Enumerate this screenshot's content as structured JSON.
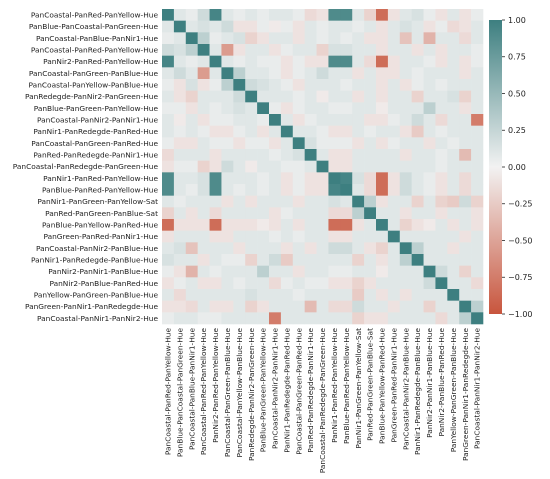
{
  "chart_data": {
    "type": "heatmap",
    "title": "",
    "xlabel": "",
    "ylabel": "",
    "labels": [
      "PanCoastal-PanRed-PanYellow-Hue",
      "PanBlue-PanCoastal-PanGreen-Hue",
      "PanCoastal-PanBlue-PanNir1-Hue",
      "PanCoastal-PanRed-PanYellow-Hue",
      "PanNir2-PanRed-PanYellow-Hue",
      "PanCoastal-PanGreen-PanBlue-Hue",
      "PanCoastal-PanYellow-PanBlue-Hue",
      "PanRedegde-PanNir2-PanGreen-Hue",
      "PanBlue-PanGreen-PanYellow-Hue",
      "PanCoastal-PanNir2-PanNir1-Hue",
      "PanNir1-PanRedegde-PanRed-Hue",
      "PanCoastal-PanGreen-PanRed-Hue",
      "PanRed-PanRedegde-PanNir1-Hue",
      "PanCoastal-PanRedegde-PanGreen-Hue",
      "PanNir1-PanRed-PanYellow-Hue",
      "PanBlue-PanRed-PanYellow-Hue",
      "PanNir1-PanGreen-PanYellow-Sat",
      "PanRed-PanGreen-PanBlue-Sat",
      "PanBlue-PanYellow-PanRed-Hue",
      "PanGreen-PanRed-PanNir1-Hue",
      "PanCoastal-PanNir2-PanBlue-Hue",
      "PanNir1-PanRedegde-PanBlue-Hue",
      "PanNir2-PanNir1-PanBlue-Hue",
      "PanNir2-PanBlue-PanRed-Hue",
      "PanYellow-PanGreen-PanBlue-Hue",
      "PanGreen-PanNir1-PanRedegde-Hue",
      "PanCoastal-PanNir1-PanNir2-Hue"
    ],
    "xticklabels": [
      "PanCoastal-PanRed-PanYellow-Hue",
      "PanBlue-PanCoastal-PanGreen-Hue",
      "PanCoastal-PanBlue-PanNir1-Hue",
      "PanCoastal-PanRed-PanYellow-Hue",
      "PanNir2-PanRed-PanYellow-Hue",
      "PanCoastal-PanGreen-PanBlue-Hue",
      "PanCoastal-PanYellow-PanBlue-Hue",
      "PanRedegde-PanNir2-PanGreen-Hue",
      "PanBlue-PanGreen-PanYellow-Hue",
      "PanCoastal-PanNir2-PanNir1-Hue",
      "PanNir1-PanRedegde-PanRed-Hue",
      "PanCoastal-PanGreen-PanRed-Hue",
      "PanRed-PanRedegde-PanNir1-Hue",
      "PanCoastal-PanRedegde-PanGreen-Hue",
      "PanNir1-PanRed-PanYellow-Hue",
      "PanBlue-PanRed-PanYellow-Hue",
      "PanNir1-PanGreen-PanYellow-Sat",
      "PanRed-PanGreen-PanBlue-Sat",
      "PanBlue-PanYellow-PanRed-Hue",
      "PanGreen-PanRed-PanNir1-Hue",
      "PanCoastal-PanNir2-PanBlue-Hue",
      "PanNir1-PanRedegde-PanBlue-Hue",
      "PanNir2-PanNir1-PanBlue-Hue",
      "PanNir2-PanBlue-PanRed-Hue",
      "PanYellow-PanGreen-PanBlue-Hue",
      "PanGreen-PanNir1-PanRedegde-Hue",
      "PanCoastal-PanNir1-PanNir2-Hue"
    ],
    "values": [
      [
        1.0,
        0.1,
        0.05,
        0.2,
        0.95,
        0.1,
        0.05,
        0.1,
        0.05,
        0.1,
        0.1,
        0.05,
        -0.15,
        -0.1,
        0.9,
        0.9,
        0.1,
        -0.2,
        -0.85,
        -0.1,
        0.1,
        0.15,
        0.05,
        -0.1,
        0.1,
        -0.1,
        0.05
      ],
      [
        0.1,
        1.0,
        0.1,
        0.15,
        0.1,
        0.2,
        -0.1,
        -0.1,
        0.05,
        -0.05,
        0.05,
        -0.1,
        0.1,
        0.05,
        0.1,
        0.1,
        0.05,
        0.1,
        -0.1,
        0.1,
        0.15,
        0.1,
        -0.1,
        0.05,
        -0.15,
        -0.1,
        0.1
      ],
      [
        0.05,
        0.1,
        1.0,
        0.3,
        0.05,
        0.1,
        0.15,
        -0.2,
        -0.1,
        0.1,
        0.1,
        -0.1,
        0.1,
        0.05,
        0.1,
        0.05,
        0.1,
        -0.1,
        -0.1,
        0.1,
        -0.3,
        0.1,
        -0.4,
        0.1,
        0.1,
        -0.15,
        0.1
      ],
      [
        0.2,
        0.15,
        0.3,
        1.0,
        0.1,
        -0.55,
        -0.1,
        0.1,
        0.1,
        -0.1,
        0.05,
        0.1,
        0.1,
        -0.2,
        0.15,
        0.15,
        0.1,
        0.1,
        -0.1,
        0.1,
        0.1,
        -0.1,
        0.1,
        -0.1,
        0.1,
        0.1,
        0.05
      ],
      [
        0.95,
        0.1,
        0.05,
        0.1,
        1.0,
        0.1,
        0.05,
        0.1,
        0.05,
        0.05,
        -0.1,
        0.05,
        -0.1,
        -0.1,
        0.9,
        0.9,
        0.1,
        -0.15,
        -0.85,
        -0.1,
        0.1,
        0.1,
        0.05,
        -0.1,
        0.1,
        -0.1,
        0.05
      ],
      [
        0.1,
        0.2,
        0.1,
        -0.55,
        0.1,
        1.0,
        0.3,
        0.1,
        0.1,
        0.05,
        -0.1,
        0.05,
        0.1,
        0.2,
        0.1,
        0.1,
        -0.1,
        0.1,
        -0.1,
        -0.1,
        0.1,
        0.05,
        0.1,
        0.1,
        0.1,
        -0.1,
        0.1
      ],
      [
        0.05,
        -0.1,
        0.15,
        -0.1,
        0.05,
        0.3,
        1.0,
        0.2,
        0.15,
        0.1,
        0.05,
        -0.1,
        0.1,
        0.1,
        0.1,
        0.05,
        0.1,
        0.1,
        -0.1,
        0.1,
        -0.1,
        0.05,
        0.1,
        0.05,
        0.1,
        0.1,
        0.1
      ],
      [
        0.1,
        -0.1,
        -0.2,
        0.1,
        0.1,
        0.1,
        0.2,
        1.0,
        0.1,
        0.1,
        0.1,
        0.05,
        0.1,
        -0.05,
        0.1,
        0.1,
        -0.1,
        0.1,
        -0.1,
        0.1,
        0.1,
        -0.2,
        0.1,
        0.1,
        0.15,
        -0.2,
        0.1
      ],
      [
        0.05,
        0.05,
        -0.1,
        0.1,
        0.05,
        0.1,
        0.15,
        0.1,
        1.0,
        0.05,
        -0.1,
        0.05,
        0.1,
        0.1,
        0.05,
        0.05,
        0.1,
        0.1,
        -0.05,
        0.1,
        0.1,
        0.1,
        0.3,
        0.1,
        0.1,
        -0.1,
        0.1
      ],
      [
        0.1,
        -0.05,
        0.1,
        -0.1,
        0.05,
        0.05,
        0.1,
        0.1,
        0.05,
        1.0,
        0.1,
        -0.1,
        0.05,
        0.1,
        0.1,
        0.1,
        0.1,
        -0.1,
        -0.1,
        0.05,
        0.1,
        0.2,
        0.1,
        -0.15,
        0.1,
        0.1,
        -0.75
      ],
      [
        0.1,
        0.05,
        0.1,
        0.05,
        -0.1,
        -0.1,
        0.05,
        0.1,
        -0.1,
        0.1,
        1.0,
        0.1,
        0.1,
        0.05,
        -0.1,
        -0.1,
        0.1,
        0.05,
        0.1,
        0.1,
        -0.1,
        -0.25,
        0.1,
        0.05,
        0.1,
        0.1,
        0.1
      ],
      [
        0.05,
        -0.1,
        -0.1,
        0.1,
        0.05,
        0.05,
        -0.1,
        0.05,
        0.05,
        -0.1,
        0.1,
        1.0,
        0.15,
        0.05,
        0.05,
        0.05,
        -0.1,
        0.1,
        -0.1,
        0.05,
        0.1,
        0.1,
        -0.1,
        0.1,
        0.05,
        0.1,
        0.1
      ],
      [
        -0.15,
        0.1,
        0.1,
        0.1,
        -0.1,
        0.1,
        0.1,
        0.1,
        0.1,
        0.05,
        0.1,
        0.15,
        1.0,
        0.1,
        -0.1,
        -0.1,
        0.1,
        0.1,
        0.1,
        0.1,
        -0.1,
        0.1,
        0.1,
        0.05,
        0.1,
        -0.35,
        0.1
      ],
      [
        -0.1,
        0.05,
        0.05,
        -0.2,
        -0.1,
        0.2,
        0.1,
        -0.05,
        0.1,
        0.1,
        0.05,
        0.05,
        0.1,
        1.0,
        -0.1,
        -0.1,
        0.1,
        0.1,
        0.1,
        0.1,
        0.1,
        0.1,
        0.1,
        0.05,
        0.1,
        0.1,
        0.1
      ],
      [
        0.9,
        0.1,
        0.1,
        0.15,
        0.9,
        0.1,
        0.1,
        0.1,
        0.05,
        0.1,
        -0.1,
        0.05,
        -0.1,
        -0.1,
        1.0,
        0.95,
        0.15,
        -0.15,
        -0.85,
        -0.1,
        0.2,
        0.1,
        0.05,
        -0.1,
        0.1,
        -0.15,
        0.1
      ],
      [
        0.9,
        0.1,
        0.05,
        0.15,
        0.9,
        0.1,
        0.05,
        0.1,
        0.05,
        0.1,
        -0.1,
        0.05,
        -0.1,
        -0.1,
        0.95,
        1.0,
        0.1,
        -0.15,
        -0.85,
        -0.1,
        0.2,
        0.1,
        0.05,
        -0.1,
        0.1,
        -0.15,
        0.1
      ],
      [
        0.1,
        0.05,
        0.1,
        0.1,
        0.1,
        -0.1,
        0.1,
        -0.1,
        0.1,
        0.1,
        0.1,
        -0.1,
        0.1,
        0.1,
        0.15,
        0.1,
        1.0,
        0.3,
        -0.1,
        0.1,
        0.1,
        -0.2,
        0.1,
        -0.2,
        -0.25,
        0.2,
        -0.2
      ],
      [
        -0.2,
        0.1,
        -0.1,
        0.1,
        -0.15,
        0.1,
        0.1,
        0.1,
        0.1,
        -0.1,
        0.05,
        0.1,
        0.1,
        0.1,
        -0.15,
        -0.15,
        0.3,
        1.0,
        0.1,
        0.1,
        -0.1,
        0.1,
        0.1,
        -0.1,
        0.1,
        0.1,
        -0.1
      ],
      [
        -0.85,
        -0.1,
        -0.1,
        -0.1,
        -0.85,
        -0.1,
        -0.1,
        -0.1,
        -0.05,
        -0.1,
        0.1,
        -0.1,
        0.1,
        0.1,
        -0.85,
        -0.85,
        -0.1,
        0.1,
        1.0,
        0.1,
        -0.2,
        -0.1,
        -0.05,
        0.1,
        -0.1,
        0.1,
        -0.1
      ],
      [
        -0.1,
        0.1,
        0.1,
        0.1,
        -0.1,
        -0.1,
        0.1,
        0.1,
        0.1,
        0.05,
        0.1,
        0.05,
        0.1,
        0.1,
        -0.1,
        -0.1,
        0.1,
        0.1,
        0.1,
        1.0,
        0.1,
        0.1,
        0.1,
        0.1,
        0.1,
        -0.1,
        0.1
      ],
      [
        0.1,
        0.15,
        -0.3,
        0.1,
        0.1,
        0.1,
        -0.1,
        0.1,
        0.1,
        0.1,
        -0.1,
        0.1,
        -0.1,
        0.1,
        0.2,
        0.2,
        0.1,
        -0.1,
        -0.2,
        0.1,
        1.0,
        0.3,
        0.1,
        0.1,
        -0.1,
        0.1,
        0.1
      ],
      [
        0.15,
        0.1,
        0.1,
        -0.1,
        0.1,
        0.05,
        0.05,
        -0.2,
        0.1,
        0.2,
        -0.25,
        0.1,
        0.1,
        0.1,
        0.1,
        0.1,
        -0.2,
        0.1,
        -0.1,
        0.1,
        0.3,
        1.0,
        0.1,
        0.1,
        0.1,
        0.1,
        0.1
      ],
      [
        0.05,
        -0.1,
        -0.4,
        0.1,
        0.05,
        0.1,
        0.1,
        0.1,
        0.3,
        0.1,
        0.1,
        -0.1,
        0.1,
        0.1,
        0.05,
        0.05,
        0.1,
        0.1,
        -0.05,
        0.1,
        0.1,
        0.1,
        1.0,
        0.2,
        0.1,
        -0.2,
        0.1
      ],
      [
        -0.1,
        0.05,
        0.1,
        -0.1,
        -0.1,
        0.1,
        0.05,
        0.1,
        0.1,
        -0.15,
        0.05,
        0.1,
        0.05,
        0.05,
        -0.1,
        -0.1,
        -0.2,
        -0.1,
        0.1,
        0.1,
        0.1,
        0.1,
        0.2,
        1.0,
        0.1,
        0.1,
        -0.15
      ],
      [
        0.1,
        -0.15,
        0.1,
        0.1,
        0.1,
        0.1,
        0.1,
        0.15,
        0.1,
        0.1,
        0.1,
        0.05,
        0.1,
        0.1,
        0.1,
        0.1,
        -0.25,
        0.1,
        -0.1,
        0.1,
        -0.1,
        0.1,
        0.1,
        0.1,
        1.0,
        0.1,
        0.1
      ],
      [
        -0.1,
        -0.1,
        -0.15,
        0.1,
        -0.1,
        -0.1,
        0.1,
        -0.2,
        -0.1,
        0.1,
        0.1,
        0.1,
        -0.35,
        0.1,
        -0.15,
        -0.15,
        0.2,
        0.1,
        0.1,
        -0.1,
        0.1,
        0.1,
        -0.2,
        0.1,
        0.1,
        1.0,
        0.3
      ],
      [
        0.05,
        0.1,
        0.1,
        0.05,
        0.05,
        0.1,
        0.1,
        0.1,
        0.1,
        -0.75,
        0.1,
        0.1,
        0.1,
        0.1,
        0.1,
        0.1,
        -0.2,
        -0.1,
        -0.1,
        0.1,
        0.1,
        0.1,
        0.1,
        -0.15,
        0.1,
        0.3,
        1.0
      ]
    ],
    "vmin": -1.0,
    "vmax": 1.0,
    "colorscale": {
      "negative": "#c8553d",
      "center": "#f2f2f2",
      "positive": "#3d7f80"
    },
    "colorbar_ticks": [
      {
        "value": 1.0,
        "label": "1.00"
      },
      {
        "value": 0.75,
        "label": "0.75"
      },
      {
        "value": 0.5,
        "label": "0.50"
      },
      {
        "value": 0.25,
        "label": "0.25"
      },
      {
        "value": 0.0,
        "label": "0.00"
      },
      {
        "value": -0.25,
        "label": "−0.25"
      },
      {
        "value": -0.5,
        "label": "−0.50"
      },
      {
        "value": -0.75,
        "label": "−0.75"
      },
      {
        "value": -1.0,
        "label": "−1.00"
      }
    ],
    "grid": false,
    "legend": "colorbar-right"
  }
}
